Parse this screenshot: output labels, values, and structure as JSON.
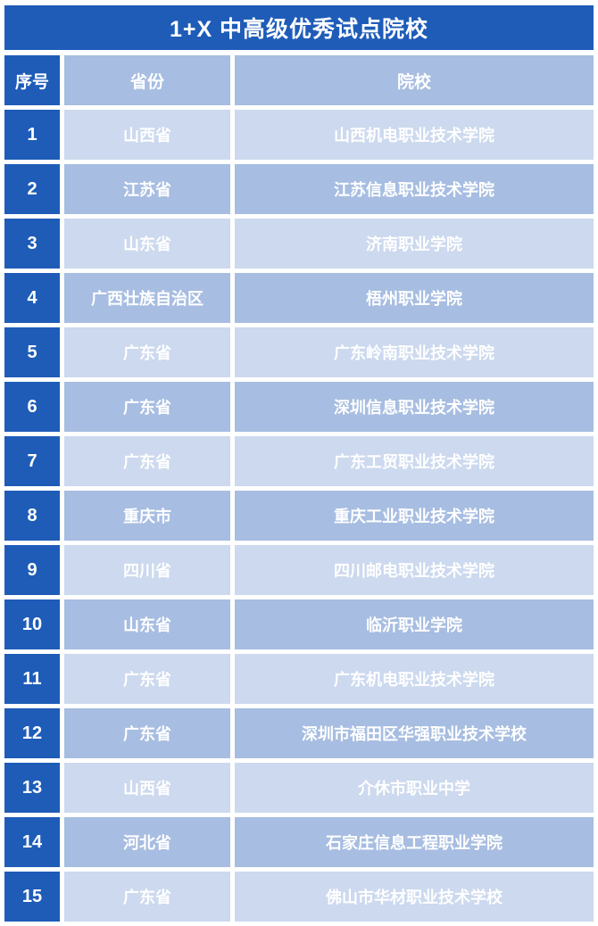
{
  "title": "1+X 中高级优秀试点院校",
  "colors": {
    "primary_blue": "#1e5cb8",
    "row_light": "#ccd9ee",
    "row_dark": "#a7bde1",
    "text": "#ffffff"
  },
  "table": {
    "headers": [
      "序号",
      "省份",
      "院校"
    ],
    "rows": [
      {
        "index": "1",
        "province": "山西省",
        "institution": "山西机电职业技术学院"
      },
      {
        "index": "2",
        "province": "江苏省",
        "institution": "江苏信息职业技术学院"
      },
      {
        "index": "3",
        "province": "山东省",
        "institution": "济南职业学院"
      },
      {
        "index": "4",
        "province": "广西壮族自治区",
        "institution": "梧州职业学院"
      },
      {
        "index": "5",
        "province": "广东省",
        "institution": "广东岭南职业技术学院"
      },
      {
        "index": "6",
        "province": "广东省",
        "institution": "深圳信息职业技术学院"
      },
      {
        "index": "7",
        "province": "广东省",
        "institution": "广东工贸职业技术学院"
      },
      {
        "index": "8",
        "province": "重庆市",
        "institution": "重庆工业职业技术学院"
      },
      {
        "index": "9",
        "province": "四川省",
        "institution": "四川邮电职业技术学院"
      },
      {
        "index": "10",
        "province": "山东省",
        "institution": "临沂职业学院"
      },
      {
        "index": "11",
        "province": "广东省",
        "institution": "广东机电职业技术学院"
      },
      {
        "index": "12",
        "province": "广东省",
        "institution": "深圳市福田区华强职业技术学校"
      },
      {
        "index": "13",
        "province": "山西省",
        "institution": "介休市职业中学"
      },
      {
        "index": "14",
        "province": "河北省",
        "institution": "石家庄信息工程职业学院"
      },
      {
        "index": "15",
        "province": "广东省",
        "institution": "佛山市华材职业技术学校"
      }
    ]
  }
}
